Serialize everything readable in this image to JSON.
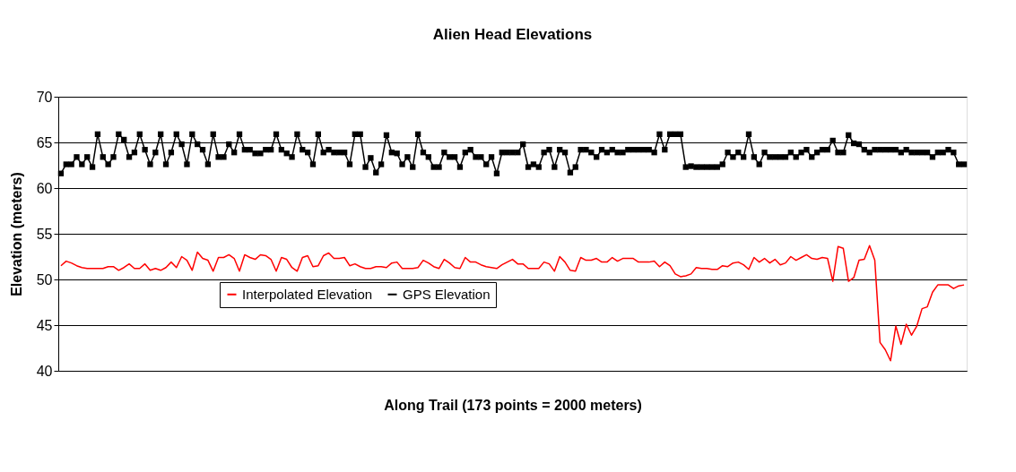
{
  "chart_data": {
    "type": "line",
    "title": "Alien Head Elevations",
    "xlabel": "Along Trail (173 points = 2000 meters)",
    "ylabel": "Elevation (meters)",
    "categories": [
      null,
      null,
      null,
      null,
      null,
      null,
      null,
      null,
      null,
      null,
      null,
      null,
      null,
      null,
      null,
      null,
      null,
      null,
      null,
      null,
      null,
      null,
      null,
      null,
      null,
      null,
      null,
      null,
      null,
      null,
      null,
      null,
      null,
      null,
      null,
      null,
      null,
      null,
      null,
      null,
      null,
      null,
      null,
      null,
      null,
      null,
      null,
      null,
      null,
      null,
      null,
      null,
      null,
      null,
      null,
      null,
      null,
      null,
      null,
      null,
      null,
      null,
      null,
      null,
      null,
      null,
      null,
      null,
      null,
      null,
      null,
      null,
      null,
      null,
      null,
      null,
      null,
      null,
      null,
      null,
      null,
      null,
      null,
      null,
      null,
      null,
      null,
      null,
      null,
      null,
      null,
      null,
      null,
      null,
      null,
      null,
      null,
      null,
      null,
      null,
      null,
      null,
      null,
      null,
      null,
      null,
      null,
      null,
      null,
      null,
      null,
      null,
      null,
      null,
      null,
      null,
      null,
      null,
      null,
      null,
      null,
      null,
      null,
      null,
      null,
      null,
      null,
      null,
      null,
      null,
      null,
      null,
      null,
      null,
      null,
      null,
      null,
      null,
      null,
      null,
      null,
      null,
      null,
      null,
      null,
      null,
      null,
      null,
      null,
      null,
      null,
      null,
      null,
      null,
      null,
      null,
      null,
      null,
      null,
      null,
      null,
      null,
      null,
      null,
      null,
      null,
      null,
      null,
      null,
      null,
      null,
      null,
      null
    ],
    "series": [
      {
        "name": "Interpolated Elevation",
        "color": "#ff0000",
        "marker": "none",
        "values": [
          51.5,
          52.0,
          51.8,
          51.5,
          51.3,
          51.2,
          51.2,
          51.2,
          51.2,
          51.4,
          51.4,
          51.0,
          51.3,
          51.7,
          51.2,
          51.2,
          51.7,
          51.0,
          51.2,
          51.0,
          51.3,
          51.9,
          51.3,
          52.5,
          52.1,
          51.0,
          53.0,
          52.3,
          52.1,
          50.9,
          52.4,
          52.4,
          52.7,
          52.3,
          50.9,
          52.7,
          52.4,
          52.2,
          52.7,
          52.6,
          52.2,
          50.9,
          52.4,
          52.2,
          51.3,
          50.9,
          52.4,
          52.6,
          51.4,
          51.5,
          52.6,
          52.9,
          52.3,
          52.3,
          52.4,
          51.5,
          51.7,
          51.4,
          51.2,
          51.2,
          51.4,
          51.4,
          51.3,
          51.8,
          51.9,
          51.2,
          51.2,
          51.2,
          51.3,
          52.1,
          51.8,
          51.4,
          51.2,
          52.2,
          51.8,
          51.3,
          51.2,
          52.4,
          51.9,
          51.9,
          51.6,
          51.4,
          51.3,
          51.2,
          51.6,
          51.9,
          52.2,
          51.7,
          51.7,
          51.2,
          51.2,
          51.2,
          51.9,
          51.7,
          50.9,
          52.5,
          51.9,
          51.0,
          50.9,
          52.4,
          52.1,
          52.1,
          52.3,
          51.9,
          51.9,
          52.4,
          52.0,
          52.3,
          52.3,
          52.3,
          51.9,
          51.9,
          51.9,
          52.0,
          51.4,
          51.9,
          51.5,
          50.6,
          50.3,
          50.4,
          50.6,
          51.3,
          51.2,
          51.2,
          51.1,
          51.1,
          51.5,
          51.4,
          51.8,
          51.9,
          51.6,
          51.1,
          52.4,
          51.9,
          52.3,
          51.8,
          52.2,
          51.6,
          51.8,
          52.5,
          52.1,
          52.4,
          52.7,
          52.3,
          52.2,
          52.4,
          52.3,
          49.8,
          53.6,
          53.4,
          49.8,
          50.2,
          52.1,
          52.2,
          53.7,
          52.1,
          43.1,
          42.3,
          41.1,
          44.9,
          42.9,
          45.1,
          43.9,
          44.9,
          46.8,
          47.0,
          48.6,
          49.4,
          49.4,
          49.4,
          49.0,
          49.3,
          49.4
        ]
      },
      {
        "name": "GPS Elevation",
        "color": "#000000",
        "marker": "square",
        "values": [
          61.6,
          62.6,
          62.6,
          63.4,
          62.6,
          63.4,
          62.3,
          65.9,
          63.4,
          62.6,
          63.4,
          65.9,
          65.3,
          63.4,
          63.9,
          65.9,
          64.2,
          62.6,
          63.9,
          65.9,
          62.6,
          63.9,
          65.9,
          64.8,
          62.6,
          65.9,
          64.8,
          64.2,
          62.6,
          65.9,
          63.4,
          63.4,
          64.8,
          63.9,
          65.9,
          64.2,
          64.2,
          63.8,
          63.8,
          64.2,
          64.2,
          65.9,
          64.2,
          63.8,
          63.4,
          65.9,
          64.2,
          63.9,
          62.6,
          65.9,
          63.9,
          64.2,
          63.9,
          63.9,
          63.9,
          62.6,
          65.9,
          65.9,
          62.3,
          63.3,
          61.7,
          62.6,
          65.8,
          63.9,
          63.8,
          62.6,
          63.4,
          62.3,
          65.9,
          63.9,
          63.4,
          62.3,
          62.3,
          63.9,
          63.4,
          63.4,
          62.3,
          63.9,
          64.2,
          63.4,
          63.4,
          62.6,
          63.4,
          61.6,
          63.9,
          63.9,
          63.9,
          63.9,
          64.8,
          62.3,
          62.6,
          62.3,
          63.9,
          64.2,
          62.3,
          64.2,
          63.9,
          61.7,
          62.3,
          64.2,
          64.2,
          63.9,
          63.4,
          64.2,
          63.9,
          64.2,
          63.9,
          63.9,
          64.2,
          64.2,
          64.2,
          64.2,
          64.2,
          63.9,
          65.9,
          64.2,
          65.9,
          65.9,
          65.9,
          62.3,
          62.4,
          62.3,
          62.3,
          62.3,
          62.3,
          62.3,
          62.6,
          63.9,
          63.4,
          63.9,
          63.4,
          65.9,
          63.4,
          62.6,
          63.9,
          63.4,
          63.4,
          63.4,
          63.4,
          63.9,
          63.4,
          63.9,
          64.2,
          63.4,
          63.9,
          64.2,
          64.2,
          65.2,
          63.9,
          63.9,
          65.8,
          64.9,
          64.8,
          64.2,
          63.9,
          64.2,
          64.2,
          64.2,
          64.2,
          64.2,
          63.9,
          64.2,
          63.9,
          63.9,
          63.9,
          63.9,
          63.4,
          63.9,
          63.9,
          64.2,
          63.9,
          62.6,
          62.6
        ]
      }
    ],
    "ylim": [
      40,
      70
    ],
    "yticks": [
      40,
      45,
      50,
      55,
      60,
      65,
      70
    ],
    "grid": "y",
    "line_style": "solid",
    "legend": "bottom left"
  }
}
